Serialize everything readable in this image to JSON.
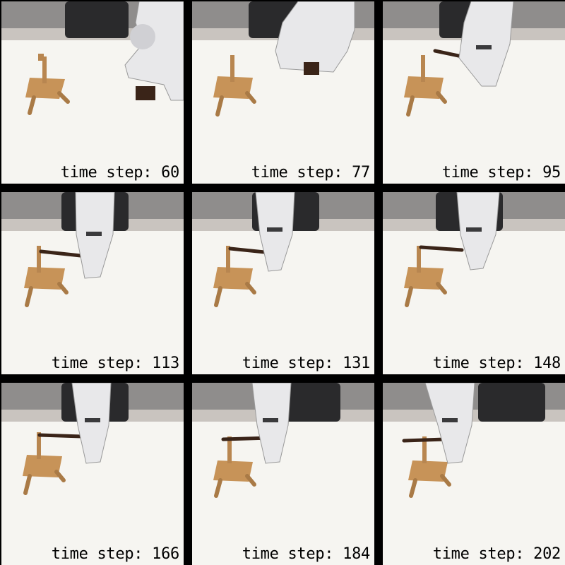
{
  "panels": [
    {
      "caption": "time step: 60"
    },
    {
      "caption": "time step: 77"
    },
    {
      "caption": "time step: 95"
    },
    {
      "caption": "time step: 113"
    },
    {
      "caption": "time step: 131"
    },
    {
      "caption": "time step: 148"
    },
    {
      "caption": "time step: 166"
    },
    {
      "caption": "time step: 184"
    },
    {
      "caption": "time step: 202"
    }
  ],
  "colors": {
    "background": "#000000",
    "floor": "#c9c4bf",
    "wall": "#8f8d8c",
    "table": "#f6f5f1",
    "wood": "#c79358",
    "rod": "#3a2418",
    "robot": "#e8e8ea",
    "robot_dark": "#2a2a2c"
  }
}
